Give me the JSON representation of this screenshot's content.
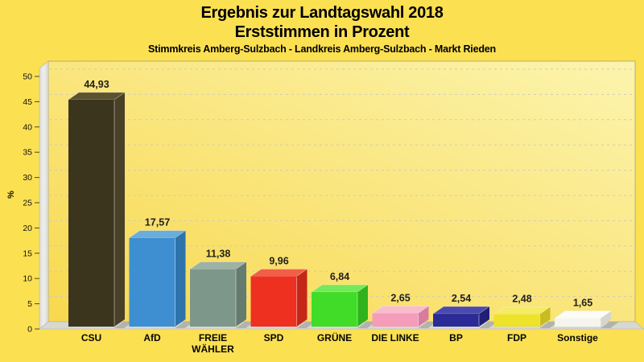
{
  "page": {
    "background": "#fbe052",
    "title": "Ergebnis zur Landtagswahl 2018",
    "subtitle": "Erststimmen in Prozent",
    "region_line": "Stimmkreis Amberg-Sulzbach - Landkreis Amberg-Sulzbach - Markt Rieden"
  },
  "chart_data": {
    "type": "bar",
    "style": "3d-column",
    "title": "Ergebnis zur Landtagswahl 2018",
    "subtitle": "Erststimmen in Prozent",
    "annotation": "Stimmkreis Amberg-Sulzbach - Landkreis Amberg-Sulzbach - Markt Rieden",
    "xlabel": "",
    "ylabel": "%",
    "ylim": [
      0,
      50
    ],
    "ytick_step": 5,
    "grid": true,
    "grid_style": "dashed",
    "legend": "none",
    "decimal_separator": ",",
    "categories": [
      "CSU",
      "AfD",
      "FREIE WÄHLER",
      "SPD",
      "GRÜNE",
      "DIE LINKE",
      "BP",
      "FDP",
      "Sonstige"
    ],
    "categories_display": [
      "CSU",
      "AfD",
      "FREIE\nWÄHLER",
      "SPD",
      "GRÜNE",
      "DIE LINKE",
      "BP",
      "FDP",
      "Sonstige"
    ],
    "values": [
      44.93,
      17.57,
      11.38,
      9.96,
      6.84,
      2.65,
      2.54,
      2.48,
      1.65
    ],
    "value_labels": [
      "44,93",
      "17,57",
      "11,38",
      "9,96",
      "6,84",
      "2,65",
      "2,54",
      "2,48",
      "1,65"
    ],
    "bar_colors": [
      {
        "party": "CSU",
        "front": "#3c351d",
        "top": "#5a5231",
        "side": "#484128"
      },
      {
        "party": "AfD",
        "front": "#3e8fd1",
        "top": "#6badda",
        "side": "#2e73ab"
      },
      {
        "party": "FREIE WÄHLER",
        "front": "#7e978b",
        "top": "#9db2a5",
        "side": "#647b70"
      },
      {
        "party": "SPD",
        "front": "#ee3020",
        "top": "#f25f49",
        "side": "#c42718"
      },
      {
        "party": "GRÜNE",
        "front": "#41dc28",
        "top": "#74e95b",
        "side": "#2fb31b"
      },
      {
        "party": "DIE LINKE",
        "front": "#f49cb8",
        "top": "#f8bccd",
        "side": "#d87c9e"
      },
      {
        "party": "BP",
        "front": "#2b2b97",
        "top": "#4a4aae",
        "side": "#1f1f75"
      },
      {
        "party": "FDP",
        "front": "#efe22b",
        "top": "#f4ec64",
        "side": "#c9bc1c"
      },
      {
        "party": "Sonstige",
        "front": "#f5f5ef",
        "top": "#fbfbf7",
        "side": "#d5d5cc"
      }
    ],
    "plot_colors": {
      "background_gradient_bottom_left": "#f8d84e",
      "background_gradient_top_right": "#fcf4ae",
      "border": "#b9ae6c",
      "wall": "#d9d9d4",
      "wall_highlight": "#efefec",
      "floor": "#d8d8d1",
      "floor_shadow": "#b3b3ab",
      "gridline": "#cccbc0",
      "tick": "#4a463c"
    }
  }
}
